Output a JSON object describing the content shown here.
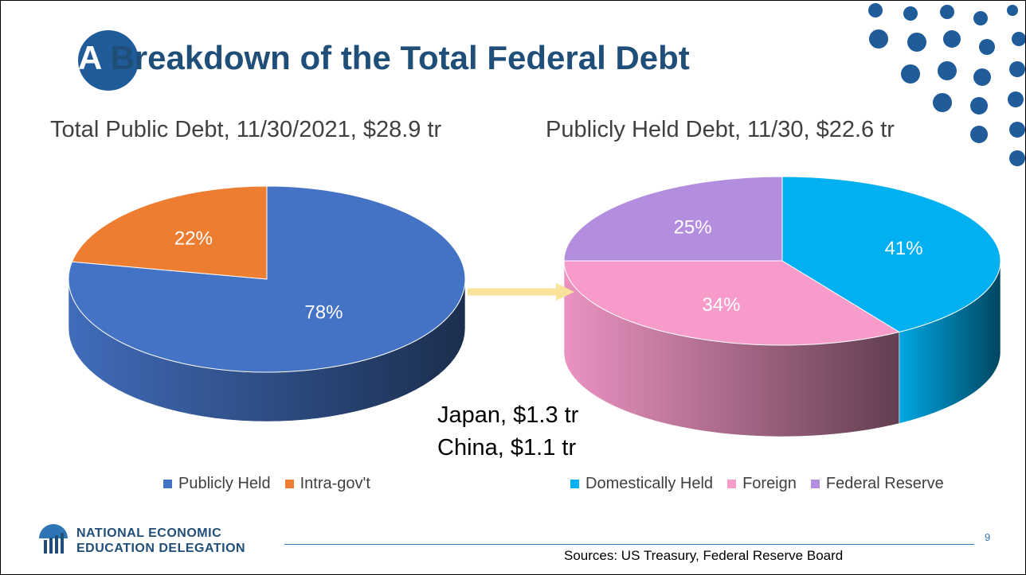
{
  "title": {
    "first_letter": "A",
    "rest": " Breakdown of the Total Federal Debt"
  },
  "chart_data": [
    {
      "type": "pie",
      "title": "Total Public Debt, 11/30/2021, $28.9 tr",
      "categories": [
        "Publicly Held",
        "Intra-gov't"
      ],
      "values": [
        78,
        22
      ],
      "labels": [
        "78%",
        "22%"
      ],
      "colors": [
        "#4472c4",
        "#ed7d31"
      ],
      "legend_position": "bottom"
    },
    {
      "type": "pie",
      "title": "Publicly Held Debt, 11/30, $22.6 tr",
      "categories": [
        "Domestically Held",
        "Foreign",
        "Federal Reserve"
      ],
      "values": [
        41,
        34,
        25
      ],
      "labels": [
        "41%",
        "34%",
        "25%"
      ],
      "colors": [
        "#00b0f0",
        "#f79bcb",
        "#b48ede"
      ],
      "legend_position": "bottom"
    }
  ],
  "annotations": [
    "Japan, $1.3 tr",
    "China, $1.1 tr"
  ],
  "footer": {
    "org_line1": "NATIONAL ECONOMIC",
    "org_line2": "EDUCATION DELEGATION",
    "page_number": "9",
    "sources": "Sources:  US Treasury, Federal Reserve Board"
  },
  "colors": {
    "title": "#1f4e79",
    "accent": "#1f5c99",
    "arrow": "#f9e29a"
  }
}
